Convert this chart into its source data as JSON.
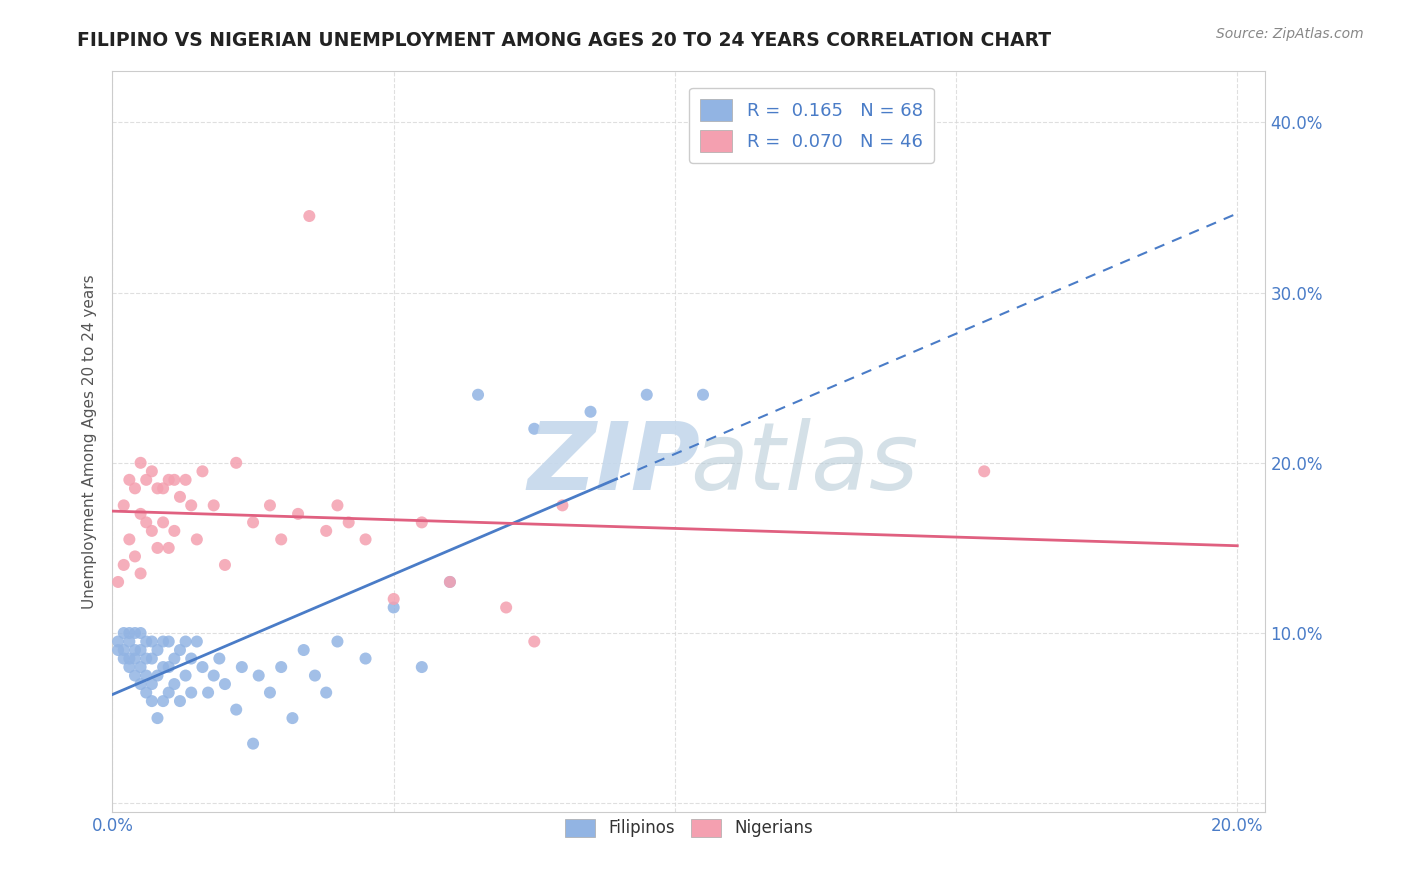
{
  "title": "FILIPINO VS NIGERIAN UNEMPLOYMENT AMONG AGES 20 TO 24 YEARS CORRELATION CHART",
  "source": "Source: ZipAtlas.com",
  "ylabel": "Unemployment Among Ages 20 to 24 years",
  "xlim": [
    0.0,
    0.205
  ],
  "ylim": [
    -0.005,
    0.43
  ],
  "r_filipino": 0.165,
  "n_filipino": 68,
  "r_nigerian": 0.07,
  "n_nigerian": 46,
  "filipino_color": "#92b4e3",
  "nigerian_color": "#f4a0b0",
  "trendline_filipino_color": "#4a7cc7",
  "trendline_nigerian_color": "#e06080",
  "background_color": "#ffffff",
  "grid_color": "#d8d8d8",
  "filipino_x": [
    0.001,
    0.001,
    0.002,
    0.002,
    0.002,
    0.003,
    0.003,
    0.003,
    0.003,
    0.004,
    0.004,
    0.004,
    0.004,
    0.005,
    0.005,
    0.005,
    0.005,
    0.006,
    0.006,
    0.006,
    0.006,
    0.007,
    0.007,
    0.007,
    0.007,
    0.008,
    0.008,
    0.008,
    0.009,
    0.009,
    0.009,
    0.01,
    0.01,
    0.01,
    0.011,
    0.011,
    0.012,
    0.012,
    0.013,
    0.013,
    0.014,
    0.014,
    0.015,
    0.016,
    0.017,
    0.018,
    0.019,
    0.02,
    0.022,
    0.023,
    0.025,
    0.026,
    0.028,
    0.03,
    0.032,
    0.034,
    0.036,
    0.038,
    0.04,
    0.045,
    0.05,
    0.055,
    0.06,
    0.065,
    0.075,
    0.085,
    0.095,
    0.105
  ],
  "filipino_y": [
    0.09,
    0.095,
    0.085,
    0.09,
    0.1,
    0.08,
    0.085,
    0.095,
    0.1,
    0.075,
    0.085,
    0.09,
    0.1,
    0.07,
    0.08,
    0.09,
    0.1,
    0.065,
    0.075,
    0.085,
    0.095,
    0.06,
    0.07,
    0.085,
    0.095,
    0.05,
    0.075,
    0.09,
    0.06,
    0.08,
    0.095,
    0.065,
    0.08,
    0.095,
    0.07,
    0.085,
    0.06,
    0.09,
    0.075,
    0.095,
    0.065,
    0.085,
    0.095,
    0.08,
    0.065,
    0.075,
    0.085,
    0.07,
    0.055,
    0.08,
    0.035,
    0.075,
    0.065,
    0.08,
    0.05,
    0.09,
    0.075,
    0.065,
    0.095,
    0.085,
    0.115,
    0.08,
    0.13,
    0.24,
    0.22,
    0.23,
    0.24,
    0.24
  ],
  "nigerian_x": [
    0.001,
    0.002,
    0.002,
    0.003,
    0.003,
    0.004,
    0.004,
    0.005,
    0.005,
    0.005,
    0.006,
    0.006,
    0.007,
    0.007,
    0.008,
    0.008,
    0.009,
    0.009,
    0.01,
    0.01,
    0.011,
    0.011,
    0.012,
    0.013,
    0.014,
    0.015,
    0.016,
    0.018,
    0.02,
    0.022,
    0.025,
    0.028,
    0.03,
    0.033,
    0.038,
    0.04,
    0.042,
    0.045,
    0.05,
    0.055,
    0.06,
    0.07,
    0.075,
    0.08,
    0.155,
    0.035
  ],
  "nigerian_y": [
    0.13,
    0.14,
    0.175,
    0.155,
    0.19,
    0.145,
    0.185,
    0.135,
    0.17,
    0.2,
    0.165,
    0.19,
    0.16,
    0.195,
    0.15,
    0.185,
    0.165,
    0.185,
    0.15,
    0.19,
    0.16,
    0.19,
    0.18,
    0.19,
    0.175,
    0.155,
    0.195,
    0.175,
    0.14,
    0.2,
    0.165,
    0.175,
    0.155,
    0.17,
    0.16,
    0.175,
    0.165,
    0.155,
    0.12,
    0.165,
    0.13,
    0.115,
    0.095,
    0.175,
    0.195,
    0.345
  ]
}
